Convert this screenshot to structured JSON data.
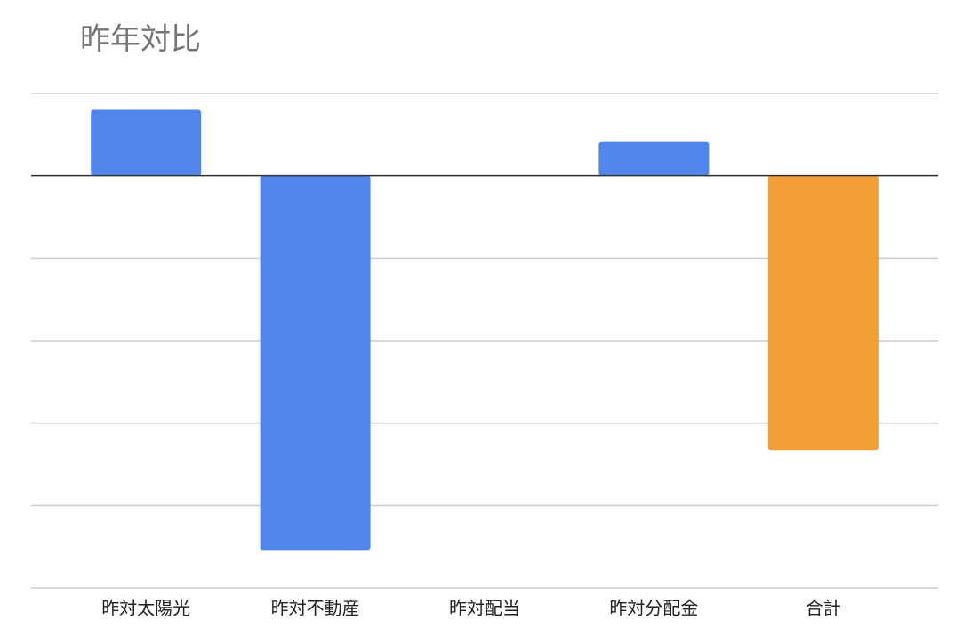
{
  "chart_data": {
    "type": "bar",
    "title": "昨年対比",
    "categories": [
      "昨対太陽光",
      "昨対不動産",
      "昨対配当",
      "昨対分配金",
      "合計"
    ],
    "values": [
      0.8,
      -4.54,
      0,
      0.41,
      -3.33
    ],
    "colors": [
      "#5085ec",
      "#5085ec",
      "#5085ec",
      "#5085ec",
      "#f29f38"
    ],
    "ylim": [
      -5,
      1
    ],
    "yticks": [
      -5,
      -4,
      -3,
      -2,
      -1,
      0,
      1
    ],
    "grid": true,
    "tick_labels": false
  }
}
